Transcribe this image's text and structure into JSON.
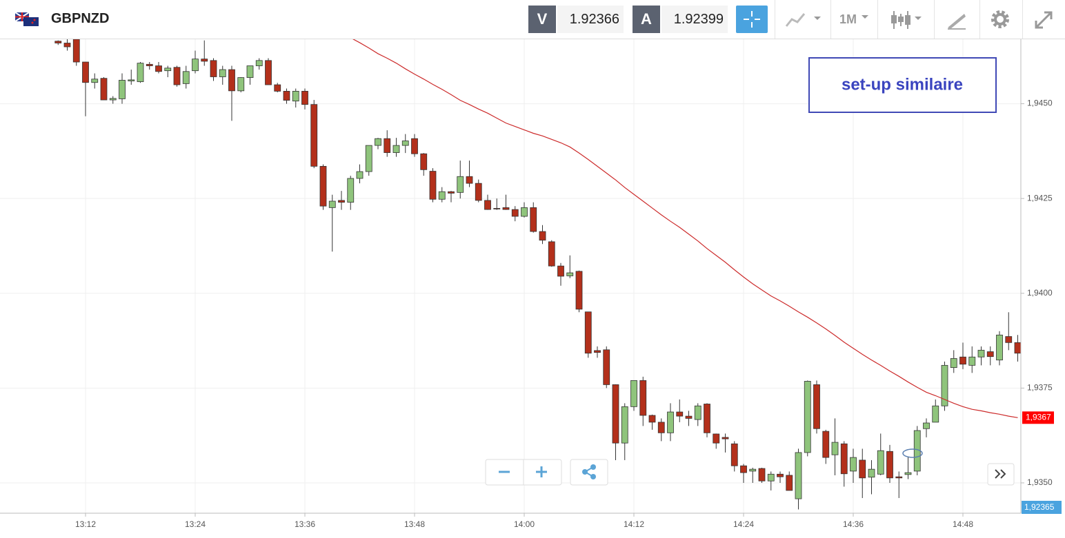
{
  "header": {
    "symbol": "GBPNZD",
    "bid_label": "V",
    "bid": 1.92366,
    "ask_label": "A",
    "ask": 1.92399,
    "timeframe": "1M"
  },
  "chart_data": {
    "type": "candlestick",
    "categories": [
      null,
      null,
      null,
      "13:12",
      null,
      null,
      null,
      null,
      null,
      null,
      null,
      null,
      null,
      null,
      null,
      "13:24",
      null,
      null,
      null,
      null,
      null,
      null,
      null,
      null,
      null,
      null,
      null,
      "13:36",
      null,
      null,
      null,
      null,
      null,
      null,
      null,
      null,
      null,
      null,
      null,
      "13:48",
      null,
      null,
      null,
      null,
      null,
      null,
      null,
      null,
      null,
      null,
      null,
      "14:00",
      null,
      null,
      null,
      null,
      null,
      null,
      null,
      null,
      null,
      null,
      null,
      "14:12",
      null,
      null,
      null,
      null,
      null,
      null,
      null,
      null,
      null,
      null,
      null,
      "14:24",
      null,
      null,
      null,
      null,
      null,
      null,
      null,
      null,
      null,
      null,
      null,
      "14:36",
      null,
      null,
      null,
      null,
      null,
      null,
      null,
      null,
      null,
      null,
      null,
      "14:48",
      null,
      null,
      null,
      null,
      null,
      null
    ],
    "open": [
      1.94665,
      1.9466,
      1.9467,
      1.9461,
      1.94556,
      1.94567,
      1.9451,
      1.94513,
      1.9456,
      1.94558,
      1.94604,
      1.946,
      1.94587,
      1.94596,
      1.94553,
      1.94587,
      1.94618,
      1.94614,
      1.94571,
      1.9459,
      1.94534,
      1.94569,
      1.946,
      1.94614,
      1.9455,
      1.94533,
      1.94507,
      1.94533,
      1.94498,
      1.94335,
      1.94226,
      1.94245,
      1.9424,
      1.94303,
      1.94321,
      1.9439,
      1.94408,
      1.94371,
      1.9439,
      1.94408,
      1.94368,
      1.94322,
      1.94248,
      1.94268,
      1.94266,
      1.94308,
      1.9429,
      1.94245,
      1.94224,
      1.94226,
      1.94221,
      1.94203,
      1.94226,
      1.94163,
      1.94136,
      1.94072,
      1.94046,
      1.94058,
      1.93951,
      1.93849,
      1.93851,
      1.93759,
      1.93605,
      1.93701,
      1.9377,
      1.93678,
      1.9366,
      1.93632,
      1.93687,
      1.93676,
      1.93667,
      1.93708,
      1.93629,
      1.9362,
      1.93603,
      1.93545,
      1.93531,
      1.93538,
      1.93505,
      1.93523,
      1.9352,
      1.93458,
      1.9358,
      1.93759,
      1.93636,
      1.93574,
      1.93603,
      1.93531,
      1.9356,
      1.93515,
      1.93523,
      1.93583,
      1.93516,
      1.93522,
      1.93531,
      1.93643,
      1.9366,
      1.93703,
      1.93804,
      1.93832,
      1.9381,
      1.93832,
      1.93846,
      1.93824,
      1.93886,
      1.9387
    ],
    "high": [
      1.94667,
      1.9467,
      1.9467,
      1.9461,
      1.9458,
      1.9457,
      1.9452,
      1.9458,
      1.9459,
      1.9461,
      1.9461,
      1.9461,
      1.946,
      1.946,
      1.946,
      1.9464,
      1.94667,
      1.9462,
      1.946,
      1.946,
      1.9457,
      1.946,
      1.9462,
      1.9462,
      1.94555,
      1.9454,
      1.9454,
      1.9454,
      1.9451,
      1.9434,
      1.9426,
      1.9427,
      1.9431,
      1.9434,
      1.9439,
      1.9441,
      1.9443,
      1.9441,
      1.9442,
      1.9442,
      1.9437,
      1.9433,
      1.9428,
      1.9427,
      1.9435,
      1.9435,
      1.943,
      1.9426,
      1.9425,
      1.9426,
      1.9423,
      1.9424,
      1.9424,
      1.9418,
      1.9414,
      1.9408,
      1.941,
      1.9406,
      1.9395,
      1.9386,
      1.9386,
      1.9376,
      1.9371,
      1.9377,
      1.9378,
      1.9368,
      1.9367,
      1.9371,
      1.9372,
      1.9369,
      1.9371,
      1.9371,
      1.9363,
      1.9363,
      1.9361,
      1.9355,
      1.9354,
      1.9354,
      1.9353,
      1.9353,
      1.9353,
      1.9359,
      1.9377,
      1.9377,
      1.9364,
      1.9367,
      1.9361,
      1.9359,
      1.9359,
      1.9356,
      1.9363,
      1.936,
      1.9353,
      1.9357,
      1.9365,
      1.9367,
      1.9372,
      1.9382,
      1.9385,
      1.9387,
      1.9386,
      1.9386,
      1.9386,
      1.939,
      1.9395,
      1.9389
    ],
    "low": [
      1.94655,
      1.9464,
      1.946,
      1.94467,
      1.9454,
      1.9451,
      1.945,
      1.945,
      1.9455,
      1.94555,
      1.9459,
      1.9458,
      1.9457,
      1.94545,
      1.9454,
      1.9458,
      1.946,
      1.9456,
      1.9455,
      1.94455,
      1.9453,
      1.9455,
      1.9459,
      1.9455,
      1.9453,
      1.945,
      1.9449,
      1.94485,
      1.9433,
      1.9422,
      1.9411,
      1.9422,
      1.9422,
      1.9429,
      1.9431,
      1.9438,
      1.9436,
      1.9436,
      1.9437,
      1.9436,
      1.9431,
      1.9424,
      1.9424,
      1.9424,
      1.9425,
      1.9428,
      1.9424,
      1.9422,
      1.9422,
      1.9422,
      1.9419,
      1.942,
      1.9416,
      1.9413,
      1.9407,
      1.9402,
      1.9404,
      1.9395,
      1.9383,
      1.9383,
      1.9375,
      1.9356,
      1.9356,
      1.9369,
      1.9365,
      1.9364,
      1.9361,
      1.9361,
      1.9366,
      1.9365,
      1.9365,
      1.9362,
      1.9359,
      1.9358,
      1.9353,
      1.935,
      1.935,
      1.935,
      1.9348,
      1.935,
      1.9348,
      1.9343,
      1.9357,
      1.9363,
      1.9355,
      1.9352,
      1.9349,
      1.935,
      1.9346,
      1.9347,
      1.9352,
      1.935,
      1.9346,
      1.9351,
      1.9352,
      1.9362,
      1.9366,
      1.9369,
      1.9379,
      1.938,
      1.9379,
      1.9381,
      1.9381,
      1.9381,
      1.9385,
      1.9382
    ],
    "close": [
      1.9466,
      1.9465,
      1.9461,
      1.94556,
      1.94565,
      1.9451,
      1.94514,
      1.94562,
      1.94563,
      1.94607,
      1.946,
      1.94585,
      1.94594,
      1.9455,
      1.94585,
      1.94618,
      1.94612,
      1.94571,
      1.9459,
      1.94534,
      1.94569,
      1.946,
      1.94614,
      1.9455,
      1.94533,
      1.94509,
      1.94533,
      1.94498,
      1.94335,
      1.9423,
      1.94243,
      1.9424,
      1.94303,
      1.94321,
      1.9439,
      1.94408,
      1.94371,
      1.9439,
      1.94402,
      1.94368,
      1.94326,
      1.94248,
      1.94268,
      1.94264,
      1.94308,
      1.9429,
      1.94245,
      1.94221,
      1.94223,
      1.94221,
      1.94203,
      1.94226,
      1.94163,
      1.9414,
      1.94072,
      1.94045,
      1.94054,
      1.93958,
      1.93842,
      1.93844,
      1.93759,
      1.93605,
      1.93701,
      1.9377,
      1.93678,
      1.9366,
      1.93632,
      1.93687,
      1.93676,
      1.9367,
      1.93703,
      1.93632,
      1.93605,
      1.93616,
      1.93545,
      1.93527,
      1.93536,
      1.93505,
      1.93523,
      1.93516,
      1.9348,
      1.9358,
      1.93768,
      1.93643,
      1.93567,
      1.93607,
      1.93524,
      1.93567,
      1.93513,
      1.93536,
      1.93585,
      1.93513,
      1.93513,
      1.93527,
      1.93638,
      1.93658,
      1.93703,
      1.9381,
      1.93828,
      1.93813,
      1.93832,
      1.9385,
      1.93833,
      1.9389,
      1.9387,
      1.93842
    ],
    "up_color": "#8fc47c",
    "down_color": "#b3301b",
    "moving_average": {
      "color": "#cc2a2a",
      "label": "1,9367",
      "values": [
        null,
        null,
        null,
        null,
        null,
        null,
        null,
        null,
        null,
        null,
        null,
        null,
        null,
        null,
        null,
        null,
        null,
        null,
        null,
        null,
        null,
        null,
        null,
        null,
        null,
        null,
        null,
        null,
        null,
        null,
        null,
        null,
        1.94674,
        1.94661,
        1.94647,
        1.94632,
        1.9462,
        1.94607,
        1.94592,
        1.94578,
        1.94565,
        1.94551,
        1.94538,
        1.94524,
        1.94509,
        1.94498,
        1.94486,
        1.94475,
        1.94462,
        1.94449,
        1.9444,
        1.94431,
        1.94422,
        1.94415,
        1.94406,
        1.94397,
        1.94386,
        1.9437,
        1.94353,
        1.94335,
        1.94317,
        1.94299,
        1.94279,
        1.94261,
        1.94243,
        1.94225,
        1.94207,
        1.9419,
        1.94174,
        1.94156,
        1.94138,
        1.94118,
        1.941,
        1.94082,
        1.94062,
        1.94043,
        1.94025,
        1.94009,
        1.93993,
        1.9398,
        1.93966,
        1.93951,
        1.93937,
        1.93922,
        1.93906,
        1.93889,
        1.93871,
        1.93855,
        1.93839,
        1.93824,
        1.9381,
        1.93795,
        1.93781,
        1.93766,
        1.93752,
        1.93739,
        1.9373,
        1.9372,
        1.9371,
        1.93701,
        1.93694,
        1.9369,
        1.93685,
        1.93681,
        1.93676,
        1.93672
      ]
    },
    "last_price_label": "1,92365",
    "annotation": "set-up similaire",
    "ylim": [
      1.9342,
      1.9467
    ],
    "yticks": [
      {
        "value": 1.935,
        "label": "1,9350"
      },
      {
        "value": 1.9375,
        "label": "1,9375"
      },
      {
        "value": 1.94,
        "label": "1,9400"
      },
      {
        "value": 1.9425,
        "label": "1,9425"
      },
      {
        "value": 1.945,
        "label": "1,9450"
      }
    ],
    "grid": true
  }
}
